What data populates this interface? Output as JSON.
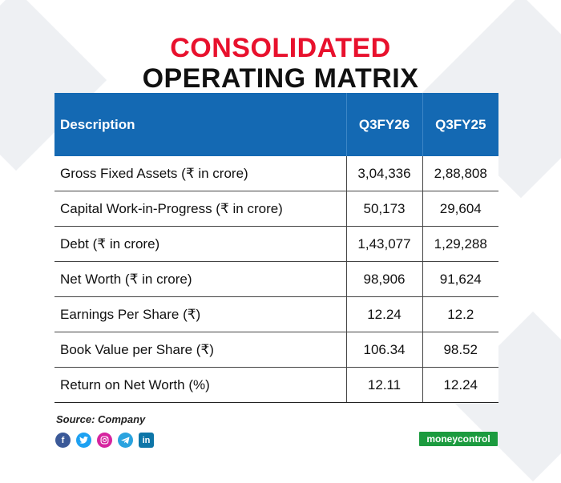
{
  "title": {
    "line1": "CONSOLIDATED",
    "line2": "OPERATING MATRIX"
  },
  "table": {
    "headers": [
      "Description",
      "Q3FY26",
      "Q3FY25"
    ],
    "rows": [
      {
        "description": "Gross Fixed Assets (₹ in crore)",
        "q3fy26": "3,04,336",
        "q3fy25": "2,88,808"
      },
      {
        "description": "Capital Work-in-Progress (₹ in crore)",
        "q3fy26": "50,173",
        "q3fy25": "29,604"
      },
      {
        "description": "Debt (₹ in crore)",
        "q3fy26": "1,43,077",
        "q3fy25": "1,29,288"
      },
      {
        "description": "Net Worth (₹ in crore)",
        "q3fy26": "98,906",
        "q3fy25": "91,624"
      },
      {
        "description": "Earnings Per Share (₹)",
        "q3fy26": "12.24",
        "q3fy25": "12.2"
      },
      {
        "description": "Book Value per Share (₹)",
        "q3fy26": "106.34",
        "q3fy25": "98.52"
      },
      {
        "description": "Return on Net Worth (%)",
        "q3fy26": "12.11",
        "q3fy25": "12.24"
      }
    ]
  },
  "source": "Source: Company",
  "social_icons": [
    "facebook-icon",
    "twitter-icon",
    "instagram-icon",
    "telegram-icon",
    "linkedin-icon"
  ],
  "brand": "moneycontrol",
  "colors": {
    "title_accent": "#e8112d",
    "header_bg": "#1469b3",
    "brand_bg": "#1c9b3f"
  }
}
